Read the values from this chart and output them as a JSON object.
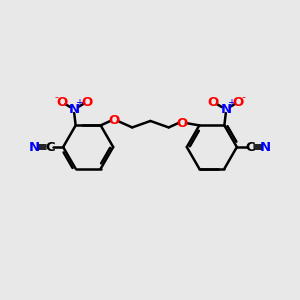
{
  "background_color": "#e8e8e8",
  "bond_color": "#000000",
  "atom_colors": {
    "C": "#000000",
    "N": "#0000ff",
    "O": "#ff0000"
  },
  "figsize": [
    3.0,
    3.0
  ],
  "dpi": 100,
  "xlim": [
    0,
    10
  ],
  "ylim": [
    1,
    9
  ]
}
